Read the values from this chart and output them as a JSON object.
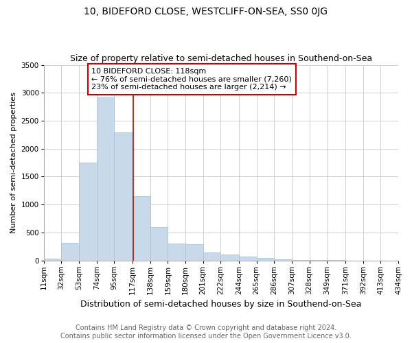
{
  "title": "10, BIDEFORD CLOSE, WESTCLIFF-ON-SEA, SS0 0JG",
  "subtitle": "Size of property relative to semi-detached houses in Southend-on-Sea",
  "xlabel": "Distribution of semi-detached houses by size in Southend-on-Sea",
  "ylabel": "Number of semi-detached properties",
  "footnote1": "Contains HM Land Registry data © Crown copyright and database right 2024.",
  "footnote2": "Contains public sector information licensed under the Open Government Licence v3.0.",
  "annotation_title": "10 BIDEFORD CLOSE: 118sqm",
  "annotation_line1": "← 76% of semi-detached houses are smaller (7,260)",
  "annotation_line2": "23% of semi-detached houses are larger (2,214) →",
  "property_size": 118,
  "bar_color": "#c8d9ea",
  "bar_edgecolor": "#aac4d8",
  "vline_color": "#cc0000",
  "annotation_box_edgecolor": "#cc0000",
  "annotation_box_facecolor": "#ffffff",
  "bin_edges": [
    11,
    32,
    53,
    74,
    95,
    117,
    138,
    159,
    180,
    201,
    222,
    244,
    265,
    286,
    307,
    328,
    349,
    371,
    392,
    413,
    434
  ],
  "bar_heights": [
    30,
    310,
    1750,
    2920,
    2290,
    1150,
    600,
    305,
    285,
    140,
    105,
    70,
    40,
    18,
    8,
    4,
    2,
    0,
    0,
    0
  ],
  "ylim": [
    0,
    3500
  ],
  "yticks": [
    0,
    500,
    1000,
    1500,
    2000,
    2500,
    3000,
    3500
  ],
  "title_fontsize": 10,
  "subtitle_fontsize": 9,
  "xlabel_fontsize": 9,
  "ylabel_fontsize": 8,
  "tick_fontsize": 7.5,
  "annotation_fontsize": 8,
  "footnote_fontsize": 7,
  "background_color": "#ffffff",
  "grid_color": "#d0d0d0"
}
